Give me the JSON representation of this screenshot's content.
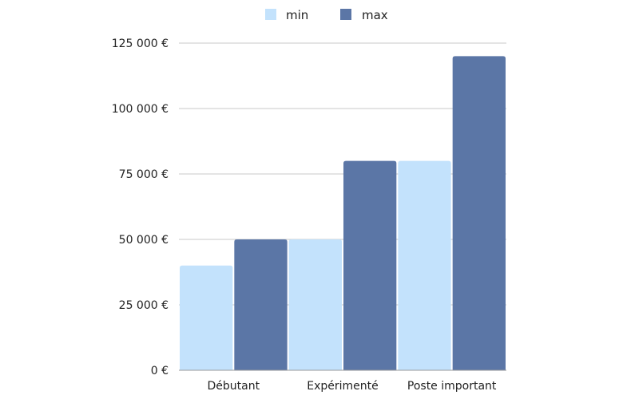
{
  "chart_data": {
    "type": "bar",
    "categories": [
      "Débutant",
      "Expérimenté",
      "Poste important"
    ],
    "series": [
      {
        "name": "min",
        "color": "#c3e2fc",
        "values": [
          40000,
          50000,
          80000
        ]
      },
      {
        "name": "max",
        "color": "#5b76a6",
        "values": [
          50000,
          80000,
          120000
        ]
      }
    ],
    "y_ticks": [
      0,
      25000,
      50000,
      75000,
      100000,
      125000
    ],
    "y_tick_labels": [
      "0 €",
      "25 000 €",
      "50 000 €",
      "75 000 €",
      "100 000 €",
      "125 000 €"
    ],
    "ylim": [
      0,
      125000
    ],
    "grid": true,
    "legend_position": "top",
    "gridline_color": "#c8c8c8"
  }
}
